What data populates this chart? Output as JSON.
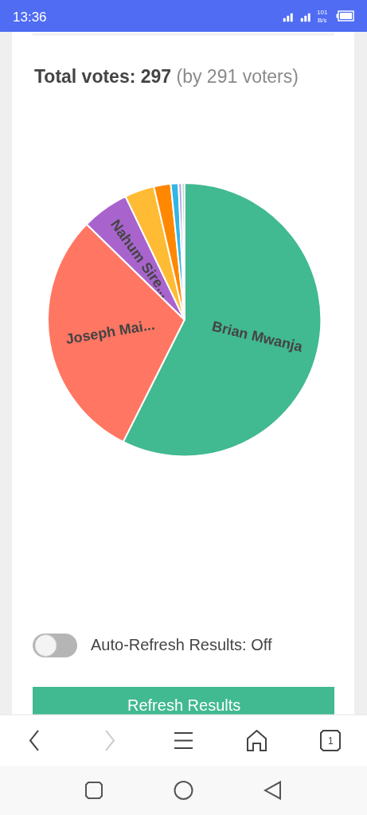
{
  "chart_data": {
    "type": "pie",
    "title": "Total votes: 297",
    "subtitle": "(by 291 voters)",
    "categories": [
      "Brian Mwanja",
      "Joseph Mai...",
      "Nahum Sire...",
      null,
      null,
      null,
      null,
      null
    ],
    "values": [
      57.4,
      29.9,
      5.6,
      3.5,
      2.0,
      0.9,
      0.4,
      0.3
    ],
    "colors": [
      "#41b991",
      "#ff7663",
      "#a864cc",
      "#ffbb33",
      "#ff8800",
      "#33b5e5",
      "#b39ddb",
      "#8fd3bd"
    ],
    "annotations": [
      "13:36",
      "101\nB/s",
      "Auto-Refresh Results: Off",
      "Refresh Results",
      "1"
    ],
    "legend": false
  }
}
